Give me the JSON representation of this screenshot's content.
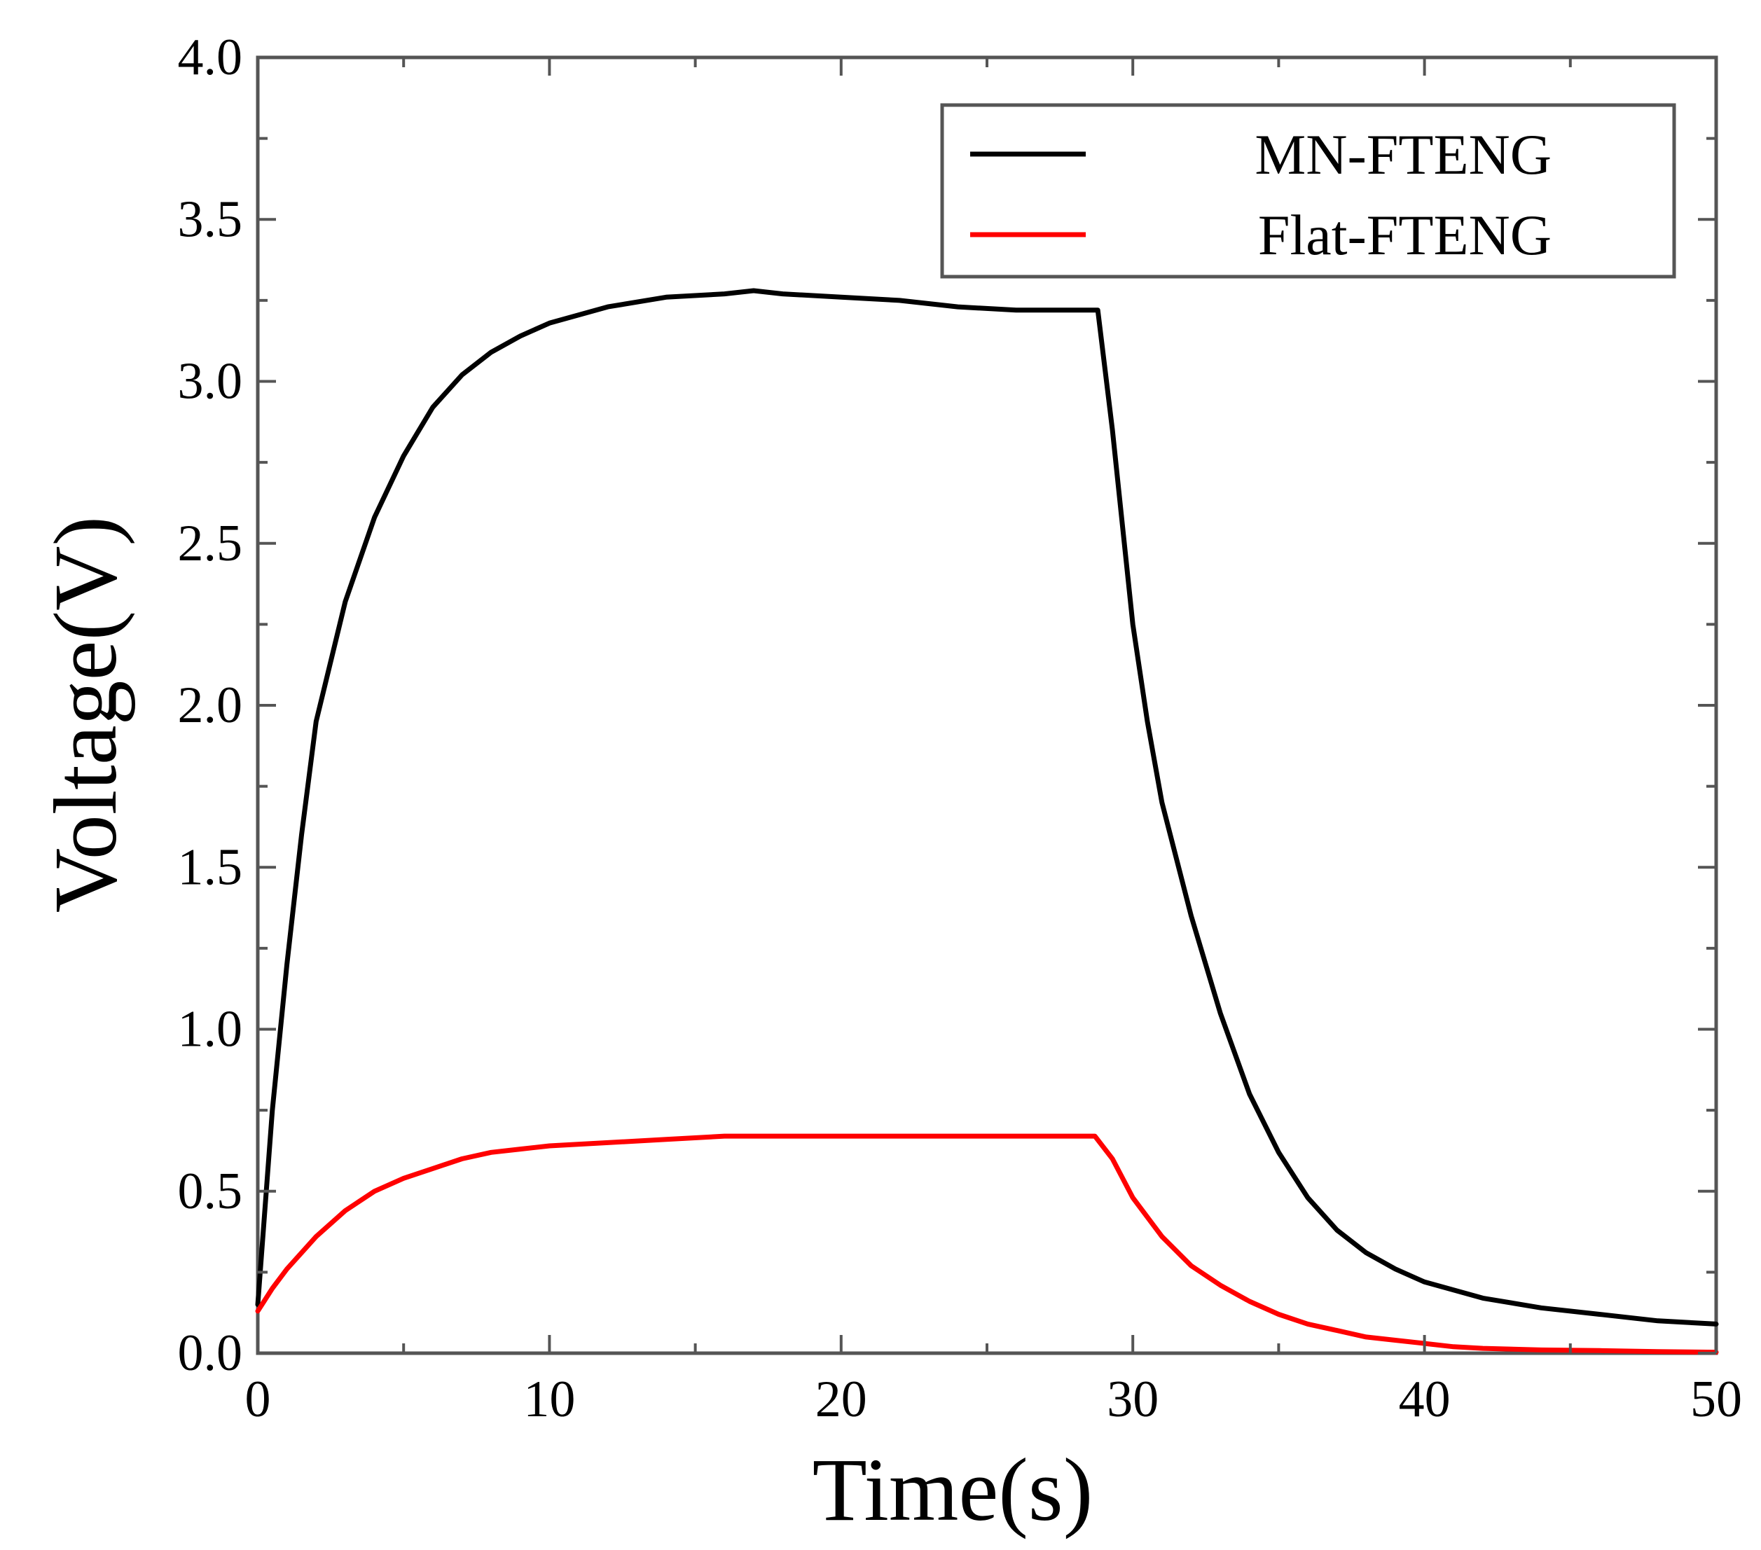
{
  "chart_data": {
    "type": "line",
    "title": "",
    "xlabel": "Time(s)",
    "ylabel": "Voltage(V)",
    "xlim": [
      0,
      50
    ],
    "ylim": [
      0,
      4
    ],
    "grid": false,
    "legend_position": "top-right",
    "x_ticks": [
      "0",
      "10",
      "20",
      "30",
      "40",
      "50"
    ],
    "y_ticks": [
      "0.0",
      "0.5",
      "1.0",
      "1.5",
      "2.0",
      "2.5",
      "3.0",
      "3.5",
      "4.0"
    ],
    "series": [
      {
        "name": "MN-FTENG",
        "color": "#000000",
        "x": [
          0,
          0.25,
          0.5,
          1,
          1.5,
          2,
          3,
          4,
          5,
          6,
          7,
          8,
          9,
          10,
          12,
          14,
          16,
          17,
          18,
          20,
          22,
          24,
          26,
          28,
          28.8,
          29.3,
          30,
          30.5,
          31,
          32,
          33,
          34,
          35,
          36,
          37,
          38,
          39,
          40,
          42,
          44,
          46,
          48,
          50
        ],
        "y": [
          0.15,
          0.45,
          0.75,
          1.2,
          1.6,
          1.95,
          2.32,
          2.58,
          2.77,
          2.92,
          3.02,
          3.09,
          3.14,
          3.18,
          3.23,
          3.26,
          3.27,
          3.28,
          3.27,
          3.26,
          3.25,
          3.23,
          3.22,
          3.22,
          3.22,
          2.85,
          2.25,
          1.95,
          1.7,
          1.35,
          1.05,
          0.8,
          0.62,
          0.48,
          0.38,
          0.31,
          0.26,
          0.22,
          0.17,
          0.14,
          0.12,
          0.1,
          0.09
        ]
      },
      {
        "name": "Flat-FTENG",
        "color": "#ff0000",
        "x": [
          0,
          0.5,
          1,
          2,
          3,
          4,
          5,
          6,
          7,
          8,
          9,
          10,
          12,
          14,
          16,
          18,
          20,
          22,
          24,
          26,
          28,
          28.7,
          29.3,
          30,
          31,
          32,
          33,
          34,
          35,
          36,
          37,
          38,
          39,
          40,
          41,
          42,
          44,
          46,
          48,
          50
        ],
        "y": [
          0.13,
          0.2,
          0.26,
          0.36,
          0.44,
          0.5,
          0.54,
          0.57,
          0.6,
          0.62,
          0.63,
          0.64,
          0.65,
          0.66,
          0.67,
          0.67,
          0.67,
          0.67,
          0.67,
          0.67,
          0.67,
          0.67,
          0.6,
          0.48,
          0.36,
          0.27,
          0.21,
          0.16,
          0.12,
          0.09,
          0.07,
          0.05,
          0.04,
          0.03,
          0.02,
          0.015,
          0.01,
          0.008,
          0.005,
          0.003
        ]
      }
    ]
  }
}
